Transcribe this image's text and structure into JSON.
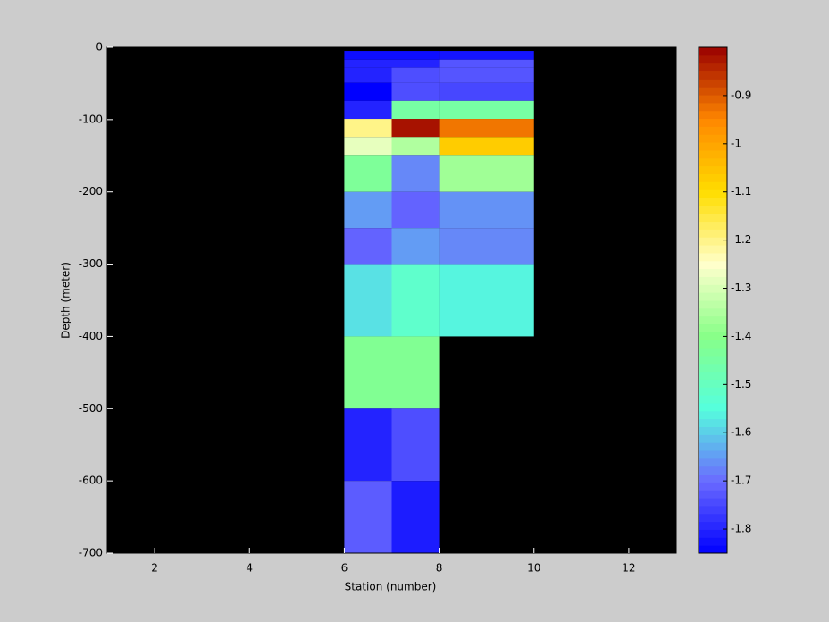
{
  "chart_data": {
    "type": "heatmap",
    "xlabel": "Station (number)",
    "ylabel": "Depth (meter)",
    "xlim": [
      1,
      13
    ],
    "xticks": [
      2,
      4,
      6,
      8,
      10,
      12
    ],
    "ylim": [
      -700,
      0
    ],
    "yticks": [
      0,
      -100,
      -200,
      -300,
      -400,
      -500,
      -600,
      -700
    ],
    "x_edges": [
      6,
      7,
      8,
      10
    ],
    "y_edges": [
      -5,
      -17,
      -28,
      -49,
      -74,
      -99,
      -124,
      -150,
      -200,
      -250,
      -300,
      -400,
      -500,
      -600,
      -700
    ],
    "values": [
      [
        -1.83,
        -1.83,
        -1.82
      ],
      [
        -1.8,
        -1.8,
        -1.73
      ],
      [
        -1.8,
        -1.74,
        -1.73
      ],
      [
        -1.85,
        -1.74,
        -1.75
      ],
      [
        -1.8,
        -1.45,
        -1.45
      ],
      [
        -1.2,
        -0.82,
        -0.93
      ],
      [
        -1.28,
        -1.35,
        -1.07
      ],
      [
        -1.43,
        -1.67,
        -1.37
      ],
      [
        -1.65,
        -1.71,
        -1.66
      ],
      [
        -1.71,
        -1.65,
        -1.67
      ],
      [
        -1.58,
        -1.52,
        -1.56
      ],
      [
        -1.42,
        -1.42,
        null
      ],
      [
        -1.8,
        -1.74,
        null
      ],
      [
        -1.72,
        -1.81,
        null
      ]
    ],
    "clim": [
      -1.85,
      -0.8
    ],
    "cticks": [
      -0.9,
      -1,
      -1.1,
      -1.2,
      -1.3,
      -1.4,
      -1.5,
      -1.6,
      -1.7,
      -1.8
    ],
    "colormap": [
      "#0000ff",
      "#6a6aff",
      "#55ffdd",
      "#88ff88",
      "#ffffcc",
      "#ffdd00",
      "#ff8800",
      "#990000"
    ]
  }
}
